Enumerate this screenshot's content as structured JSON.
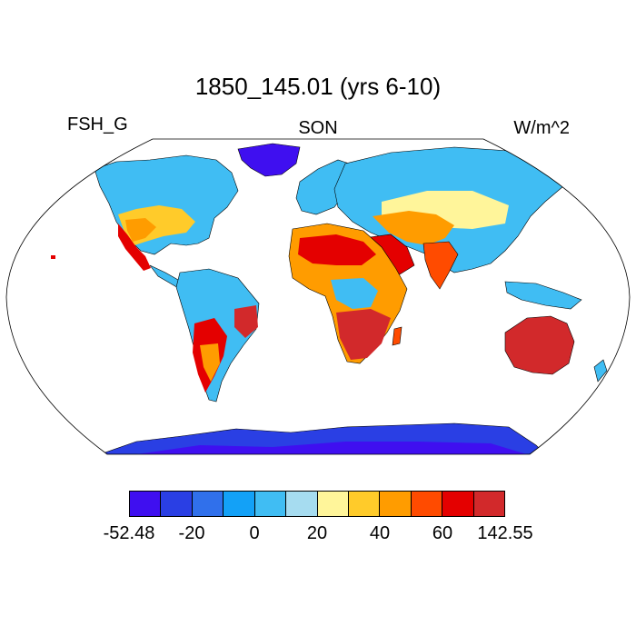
{
  "map": {
    "title": "1850_145.01 (yrs 6-10)",
    "left_label": "FSH_G",
    "center_label": "SON",
    "right_label": "W/m^2"
  },
  "colorbar": {
    "colors": [
      "#3f0ff0",
      "#2a3fe4",
      "#3070eb",
      "#13a1f7",
      "#40bdf3",
      "#a6dcf0",
      "#fff59a",
      "#ffcb2a",
      "#ff9c00",
      "#ff4b00",
      "#e40000",
      "#d2292b"
    ],
    "labels": [
      "-52.48",
      "-20",
      "0",
      "20",
      "40",
      "60",
      "142.55"
    ]
  }
}
